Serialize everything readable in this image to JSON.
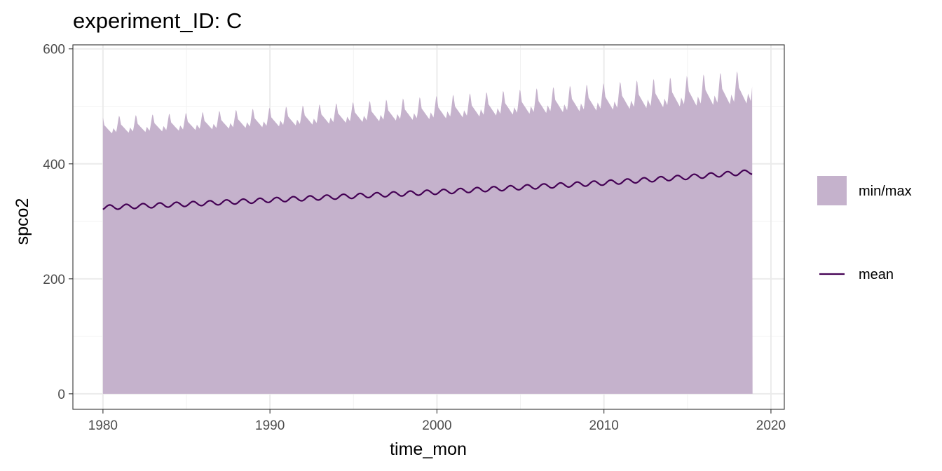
{
  "chart_data": {
    "type": "area",
    "title": "experiment_ID: C",
    "xlabel": "time_mon",
    "ylabel": "spco2",
    "xlim": [
      1978.2,
      2020.8
    ],
    "ylim": [
      -27,
      607
    ],
    "x_ticks": [
      1980,
      1990,
      2000,
      2010,
      2020
    ],
    "y_ticks": [
      0,
      200,
      400,
      600
    ],
    "grid": true,
    "legend_position": "right",
    "colors": {
      "ribbon": "#c5b2cc",
      "mean": "#440154",
      "grid": "#ebebeb",
      "panel_border": "#333333"
    },
    "legend": [
      {
        "label": "min/max",
        "kind": "fill"
      },
      {
        "label": "mean",
        "kind": "line"
      }
    ],
    "series": [
      {
        "name": "min/max",
        "kind": "ribbon",
        "x": [
          1980,
          1985,
          1990,
          1995,
          2000,
          2005,
          2010,
          2015,
          2018.9
        ],
        "ymin": [
          0,
          0,
          0,
          0,
          0,
          0,
          0,
          0,
          0
        ],
        "ymax_trough": [
          452,
          458,
          464,
          472,
          478,
          486,
          493,
          500,
          505
        ],
        "ymax_peak": [
          490,
          496,
          506,
          516,
          528,
          540,
          552,
          566,
          578
        ]
      },
      {
        "name": "mean",
        "kind": "line",
        "x": [
          1980,
          1985,
          1990,
          1995,
          2000,
          2005,
          2010,
          2015,
          2018.9
        ],
        "y": [
          324,
          330,
          337,
          344,
          351,
          359,
          367,
          377,
          386
        ],
        "seasonal_amplitude": 4
      }
    ]
  }
}
